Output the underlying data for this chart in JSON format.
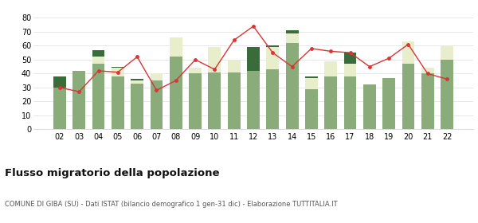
{
  "years": [
    "02",
    "03",
    "04",
    "05",
    "06",
    "07",
    "08",
    "09",
    "10",
    "11",
    "12",
    "13",
    "14",
    "15",
    "16",
    "17",
    "18",
    "19",
    "20",
    "21",
    "22"
  ],
  "iscritti_comuni": [
    30,
    42,
    47,
    38,
    33,
    35,
    52,
    40,
    41,
    41,
    42,
    43,
    62,
    29,
    38,
    38,
    32,
    37,
    47,
    40,
    50
  ],
  "iscritti_estero": [
    0,
    0,
    5,
    6,
    2,
    5,
    14,
    4,
    18,
    9,
    0,
    16,
    7,
    8,
    11,
    9,
    0,
    0,
    16,
    4,
    10
  ],
  "iscritti_altri": [
    8,
    0,
    5,
    1,
    1,
    0,
    0,
    0,
    0,
    0,
    17,
    1,
    2,
    1,
    0,
    8,
    0,
    0,
    0,
    0,
    0
  ],
  "cancellati": [
    30,
    27,
    42,
    41,
    52,
    28,
    35,
    50,
    43,
    64,
    74,
    55,
    45,
    58,
    56,
    55,
    45,
    51,
    61,
    40,
    36
  ],
  "color_comuni": "#8aab7a",
  "color_estero": "#e8eecc",
  "color_altri": "#3a6b3a",
  "color_cancellati": "#d93535",
  "title": "Flusso migratorio della popolazione",
  "subtitle": "COMUNE DI GIBA (SU) - Dati ISTAT (bilancio demografico 1 gen-31 dic) - Elaborazione TUTTITALIA.IT",
  "ylim": [
    0,
    80
  ],
  "yticks": [
    0,
    10,
    20,
    30,
    40,
    50,
    60,
    70,
    80
  ],
  "bg_color": "#ffffff"
}
